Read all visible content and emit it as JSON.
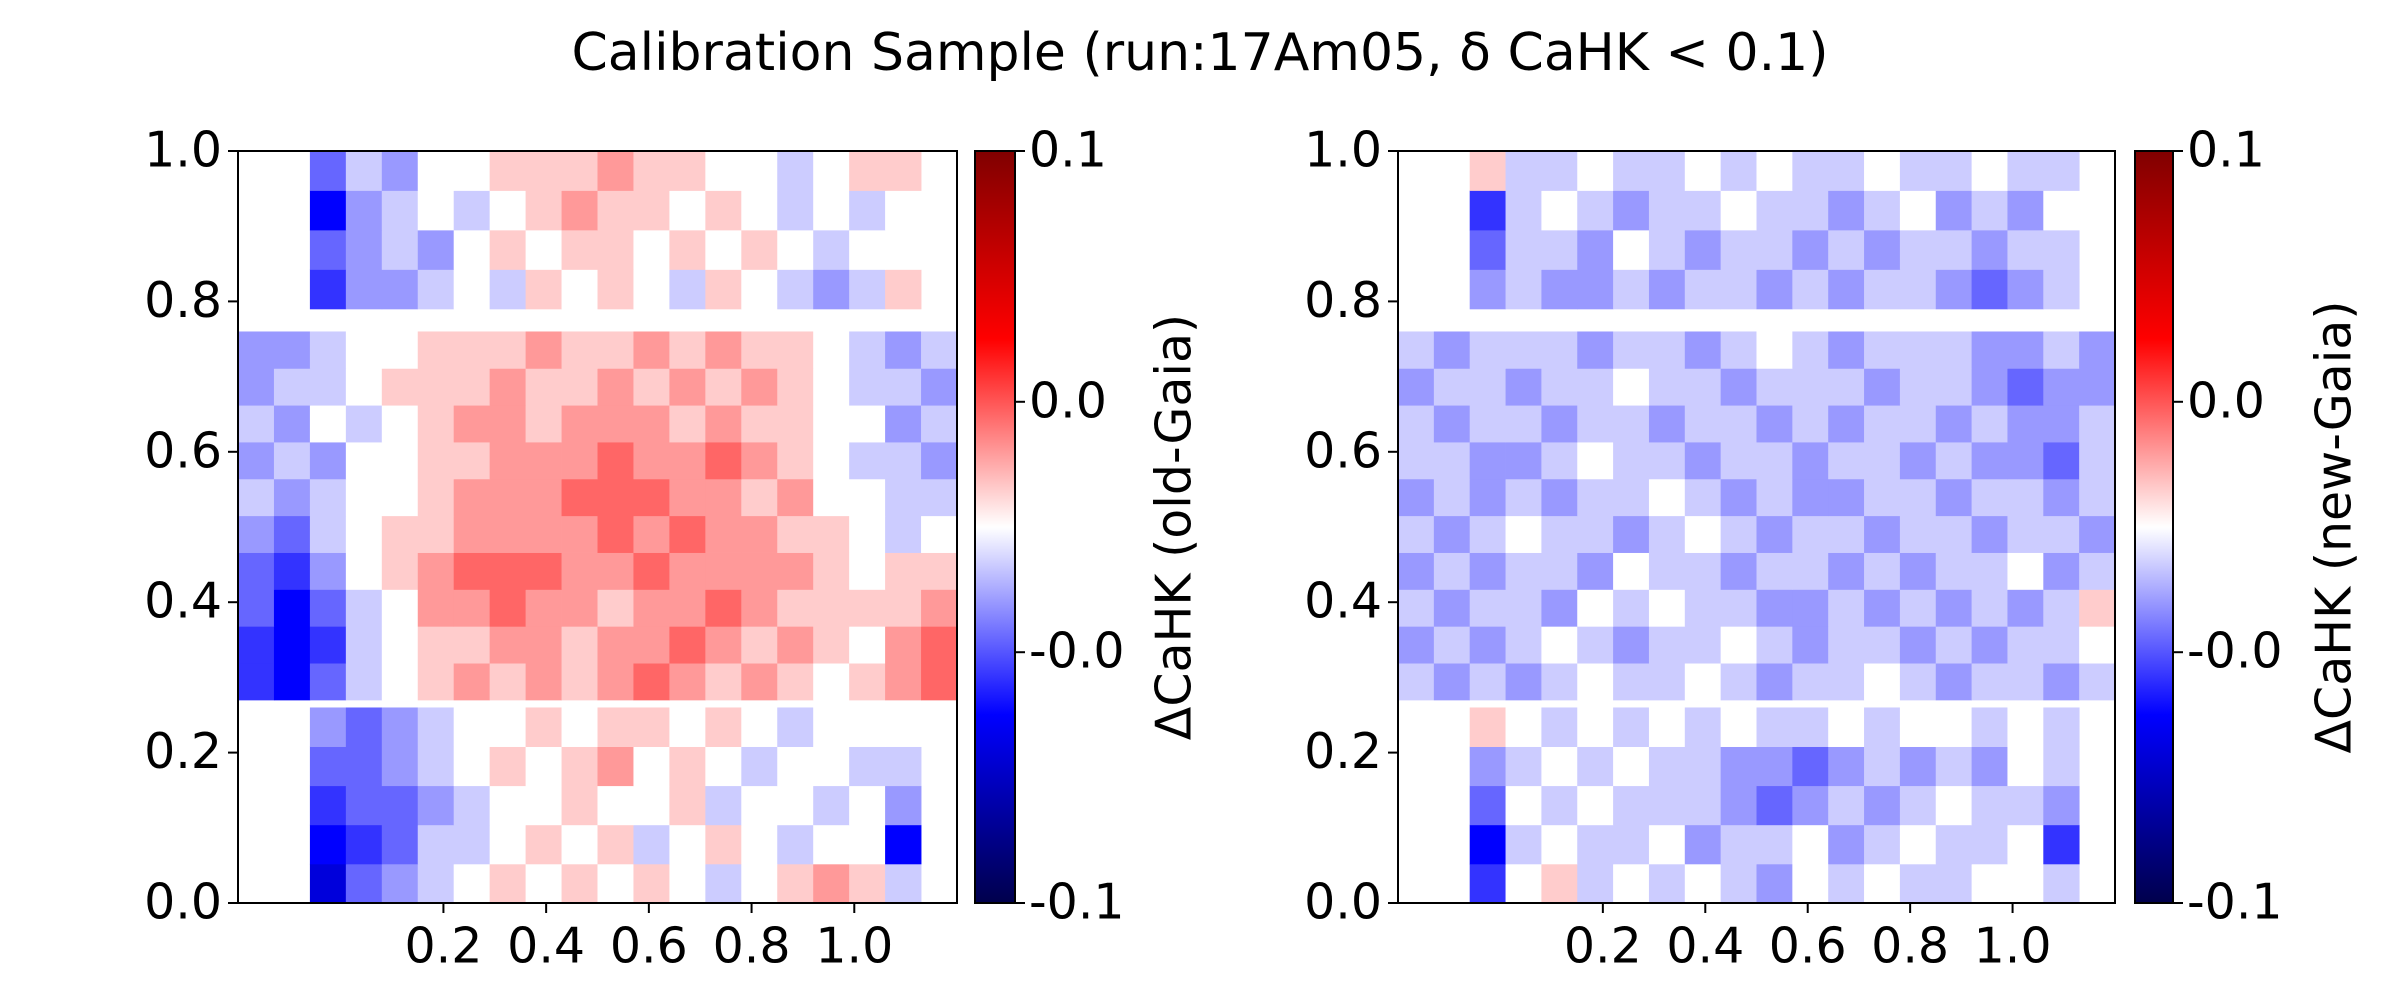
{
  "title": "Calibration Sample (run:17Am05, δ CaHK < 0.1)",
  "chart_data": [
    {
      "type": "heatmap",
      "xlim": [
        -0.2,
        1.2
      ],
      "ylim": [
        0,
        1
      ],
      "xticks": [
        0.2,
        0.4,
        0.6,
        0.8,
        {
          "value": 1.0,
          "label": "1.0"
        }
      ],
      "yticks": [
        {
          "value": 0,
          "label": "0.0"
        },
        0.2,
        0.4,
        0.6,
        0.8,
        {
          "value": 1.0,
          "label": "1.0"
        }
      ],
      "xbins": [
        -0.2,
        -0.13,
        -0.06,
        0.01,
        0.08,
        0.15,
        0.22,
        0.29,
        0.36,
        0.43,
        0.5,
        0.57,
        0.64,
        0.71,
        0.78,
        0.85,
        0.92,
        0.99,
        1.06,
        1.13,
        1.2
      ],
      "ybins": [
        0,
        0.052,
        0.104,
        0.156,
        0.208,
        0.26,
        0.27,
        0.319,
        0.368,
        0.417,
        0.466,
        0.515,
        0.564,
        0.613,
        0.662,
        0.711,
        0.76,
        0.79,
        0.8425,
        0.895,
        0.9475,
        1.0
      ],
      "z": [
        [
          null,
          null,
          -0.06,
          -0.03,
          -0.02,
          -0.01,
          0.0,
          0.01,
          0.0,
          0.01,
          0.0,
          0.01,
          0.0,
          -0.01,
          0.0,
          0.01,
          0.02,
          0.01,
          -0.01,
          null
        ],
        [
          null,
          null,
          -0.05,
          -0.04,
          -0.03,
          -0.01,
          -0.01,
          0.0,
          0.01,
          0.0,
          0.01,
          -0.01,
          0.0,
          0.01,
          0.0,
          -0.01,
          0.0,
          0.0,
          -0.05,
          null
        ],
        [
          null,
          null,
          -0.04,
          -0.03,
          -0.03,
          -0.02,
          -0.01,
          0.0,
          0.0,
          0.01,
          0.0,
          0.0,
          0.01,
          -0.01,
          0.0,
          0.0,
          -0.01,
          0.0,
          -0.02,
          null
        ],
        [
          null,
          null,
          -0.03,
          -0.03,
          -0.02,
          -0.01,
          0.0,
          0.01,
          0.0,
          0.01,
          0.02,
          0.0,
          0.01,
          0.0,
          -0.01,
          0.0,
          0.0,
          -0.01,
          -0.01,
          null
        ],
        [
          null,
          null,
          -0.02,
          -0.03,
          -0.02,
          -0.01,
          0.0,
          0.0,
          0.01,
          0.0,
          0.01,
          0.01,
          0.0,
          0.01,
          0.0,
          -0.01,
          0.0,
          0.0,
          0.0,
          null
        ],
        [
          null,
          null,
          null,
          null,
          null,
          null,
          null,
          null,
          null,
          null,
          null,
          null,
          null,
          null,
          null,
          null,
          null,
          null,
          null,
          null
        ],
        [
          -0.04,
          -0.05,
          -0.03,
          -0.01,
          0.0,
          0.01,
          0.02,
          0.01,
          0.02,
          0.01,
          0.02,
          0.03,
          0.02,
          0.01,
          0.02,
          0.01,
          0.0,
          0.01,
          0.02,
          0.03
        ],
        [
          -0.04,
          -0.05,
          -0.04,
          -0.01,
          0.0,
          0.01,
          0.01,
          0.02,
          0.02,
          0.01,
          0.02,
          0.02,
          0.03,
          0.02,
          0.01,
          0.02,
          0.01,
          0.0,
          0.02,
          0.03
        ],
        [
          -0.03,
          -0.05,
          -0.03,
          -0.01,
          0.0,
          0.02,
          0.02,
          0.03,
          0.02,
          0.02,
          0.01,
          0.02,
          0.02,
          0.03,
          0.02,
          0.01,
          0.01,
          0.01,
          0.01,
          0.02
        ],
        [
          -0.03,
          -0.04,
          -0.02,
          0.0,
          0.01,
          0.02,
          0.03,
          0.03,
          0.03,
          0.02,
          0.02,
          0.03,
          0.02,
          0.02,
          0.02,
          0.02,
          0.01,
          0.0,
          0.01,
          0.01
        ],
        [
          -0.02,
          -0.03,
          -0.01,
          0.0,
          0.01,
          0.01,
          0.02,
          0.02,
          0.02,
          0.02,
          0.03,
          0.02,
          0.03,
          0.02,
          0.02,
          0.01,
          0.01,
          0.0,
          -0.01,
          0.0
        ],
        [
          -0.01,
          -0.02,
          -0.01,
          0.0,
          0.0,
          0.01,
          0.02,
          0.02,
          0.02,
          0.03,
          0.03,
          0.03,
          0.02,
          0.02,
          0.01,
          0.02,
          0.0,
          0.0,
          -0.01,
          -0.01
        ],
        [
          -0.02,
          -0.01,
          -0.02,
          0.0,
          0.0,
          0.01,
          0.01,
          0.02,
          0.02,
          0.02,
          0.03,
          0.02,
          0.02,
          0.03,
          0.02,
          0.01,
          0.0,
          -0.01,
          -0.01,
          -0.02
        ],
        [
          -0.01,
          -0.02,
          0.0,
          -0.01,
          0.0,
          0.01,
          0.02,
          0.02,
          0.01,
          0.02,
          0.02,
          0.02,
          0.01,
          0.02,
          0.01,
          0.01,
          0.0,
          0.0,
          -0.02,
          -0.01
        ],
        [
          -0.02,
          -0.01,
          -0.01,
          0.0,
          0.01,
          0.01,
          0.01,
          0.02,
          0.01,
          0.01,
          0.02,
          0.01,
          0.02,
          0.01,
          0.02,
          0.01,
          0.0,
          -0.01,
          -0.01,
          -0.02
        ],
        [
          -0.02,
          -0.02,
          -0.01,
          0.0,
          0.0,
          0.01,
          0.01,
          0.01,
          0.02,
          0.01,
          0.01,
          0.02,
          0.01,
          0.02,
          0.01,
          0.01,
          0.0,
          -0.01,
          -0.02,
          -0.01
        ],
        [
          null,
          null,
          null,
          null,
          null,
          null,
          null,
          null,
          null,
          null,
          null,
          null,
          null,
          null,
          null,
          null,
          null,
          null,
          null,
          null
        ],
        [
          null,
          null,
          -0.04,
          -0.02,
          -0.02,
          -0.01,
          0.0,
          -0.01,
          0.01,
          0.0,
          0.01,
          0.0,
          -0.01,
          0.01,
          0.0,
          -0.01,
          -0.02,
          -0.01,
          0.01,
          null
        ],
        [
          null,
          null,
          -0.03,
          -0.02,
          -0.01,
          -0.02,
          0.0,
          0.01,
          0.0,
          0.01,
          0.01,
          0.0,
          0.01,
          0.0,
          0.01,
          0.0,
          -0.01,
          0.0,
          0.0,
          null
        ],
        [
          null,
          null,
          -0.05,
          -0.02,
          -0.01,
          0.0,
          -0.01,
          0.0,
          0.01,
          0.02,
          0.01,
          0.01,
          0.0,
          0.01,
          0.0,
          -0.01,
          0.0,
          -0.01,
          0.0,
          null
        ],
        [
          null,
          null,
          -0.03,
          -0.01,
          -0.02,
          0.0,
          0.0,
          0.01,
          0.01,
          0.01,
          0.02,
          0.01,
          0.01,
          0.0,
          0.0,
          -0.01,
          0.0,
          0.01,
          0.01,
          null
        ]
      ],
      "colormap": "seismic",
      "colorbar": {
        "label": "ΔCaHK (old-Gaia)",
        "lim": [
          -0.1,
          0.1
        ],
        "ticks": [
          {
            "value": -0.1,
            "label": "-0.1"
          },
          {
            "value": -0.0333,
            "label": "-0.0"
          },
          {
            "value": 0.0333,
            "label": "0.0"
          },
          0.1
        ]
      }
    },
    {
      "type": "heatmap",
      "xlim": [
        -0.2,
        1.2
      ],
      "ylim": [
        0,
        1
      ],
      "xticks": [
        0.2,
        0.4,
        0.6,
        0.8,
        {
          "value": 1.0,
          "label": "1.0"
        }
      ],
      "yticks": [
        {
          "value": 0,
          "label": "0.0"
        },
        0.2,
        0.4,
        0.6,
        0.8,
        {
          "value": 1.0,
          "label": "1.0"
        }
      ],
      "xbins": [
        -0.2,
        -0.13,
        -0.06,
        0.01,
        0.08,
        0.15,
        0.22,
        0.29,
        0.36,
        0.43,
        0.5,
        0.57,
        0.64,
        0.71,
        0.78,
        0.85,
        0.92,
        0.99,
        1.06,
        1.13,
        1.2
      ],
      "ybins": [
        0,
        0.052,
        0.104,
        0.156,
        0.208,
        0.26,
        0.27,
        0.319,
        0.368,
        0.417,
        0.466,
        0.515,
        0.564,
        0.613,
        0.662,
        0.711,
        0.76,
        0.79,
        0.8425,
        0.895,
        0.9475,
        1.0
      ],
      "z": [
        [
          null,
          null,
          -0.04,
          0.0,
          0.01,
          -0.01,
          0.0,
          -0.01,
          0.0,
          -0.01,
          -0.02,
          0.0,
          -0.01,
          0.0,
          -0.01,
          -0.01,
          0.0,
          0.0,
          -0.01,
          null
        ],
        [
          null,
          null,
          -0.05,
          -0.01,
          0.0,
          -0.01,
          -0.01,
          0.0,
          -0.02,
          -0.01,
          -0.01,
          0.0,
          -0.02,
          -0.01,
          0.0,
          -0.01,
          -0.01,
          0.0,
          -0.04,
          null
        ],
        [
          null,
          null,
          -0.03,
          0.0,
          -0.01,
          0.0,
          -0.01,
          -0.01,
          -0.01,
          -0.02,
          -0.03,
          -0.02,
          -0.01,
          -0.02,
          -0.01,
          0.0,
          -0.01,
          -0.01,
          -0.02,
          null
        ],
        [
          null,
          null,
          -0.02,
          -0.01,
          0.0,
          -0.01,
          0.0,
          -0.01,
          -0.01,
          -0.02,
          -0.02,
          -0.03,
          -0.02,
          -0.01,
          -0.02,
          -0.01,
          -0.02,
          0.0,
          -0.01,
          null
        ],
        [
          null,
          null,
          0.01,
          0.0,
          -0.01,
          0.0,
          -0.01,
          0.0,
          -0.01,
          0.0,
          -0.01,
          -0.01,
          0.0,
          -0.01,
          0.0,
          0.0,
          -0.01,
          0.0,
          -0.01,
          null
        ],
        [
          null,
          null,
          null,
          null,
          null,
          null,
          null,
          null,
          null,
          null,
          null,
          null,
          null,
          null,
          null,
          null,
          null,
          null,
          null,
          null
        ],
        [
          -0.01,
          -0.02,
          -0.01,
          -0.02,
          -0.01,
          0.0,
          -0.01,
          -0.01,
          0.0,
          -0.01,
          -0.02,
          -0.01,
          -0.01,
          0.0,
          -0.01,
          -0.02,
          -0.01,
          -0.01,
          -0.02,
          -0.01
        ],
        [
          -0.02,
          -0.01,
          -0.02,
          -0.01,
          0.0,
          -0.01,
          -0.02,
          -0.01,
          -0.01,
          0.0,
          -0.01,
          -0.02,
          -0.01,
          -0.01,
          -0.02,
          -0.01,
          -0.02,
          -0.01,
          -0.01,
          0.0
        ],
        [
          -0.01,
          -0.02,
          -0.01,
          -0.01,
          -0.02,
          0.0,
          -0.01,
          0.0,
          -0.01,
          -0.01,
          -0.02,
          -0.02,
          -0.01,
          -0.02,
          -0.01,
          -0.02,
          -0.01,
          -0.02,
          -0.01,
          0.01
        ],
        [
          -0.02,
          -0.01,
          -0.02,
          -0.01,
          -0.01,
          -0.02,
          0.0,
          -0.01,
          -0.01,
          -0.02,
          -0.01,
          -0.01,
          -0.02,
          -0.01,
          -0.02,
          -0.01,
          -0.01,
          0.0,
          -0.02,
          -0.01
        ],
        [
          -0.01,
          -0.02,
          -0.01,
          0.0,
          -0.01,
          -0.01,
          -0.02,
          -0.01,
          0.0,
          -0.01,
          -0.02,
          -0.01,
          -0.01,
          -0.02,
          -0.01,
          -0.01,
          -0.02,
          -0.01,
          -0.01,
          -0.02
        ],
        [
          -0.02,
          -0.01,
          -0.02,
          -0.01,
          -0.02,
          -0.01,
          -0.01,
          0.0,
          -0.01,
          -0.02,
          -0.01,
          -0.02,
          -0.02,
          -0.01,
          -0.01,
          -0.02,
          -0.01,
          -0.01,
          -0.02,
          -0.01
        ],
        [
          -0.01,
          -0.01,
          -0.02,
          -0.02,
          -0.01,
          0.0,
          -0.01,
          -0.01,
          -0.02,
          -0.01,
          -0.01,
          -0.02,
          -0.01,
          -0.01,
          -0.02,
          -0.01,
          -0.02,
          -0.02,
          -0.03,
          -0.01
        ],
        [
          -0.01,
          -0.02,
          -0.01,
          -0.01,
          -0.02,
          -0.01,
          -0.01,
          -0.02,
          -0.01,
          -0.01,
          -0.02,
          -0.01,
          -0.02,
          -0.01,
          -0.01,
          -0.02,
          -0.01,
          -0.02,
          -0.02,
          -0.01
        ],
        [
          -0.02,
          -0.01,
          -0.01,
          -0.02,
          -0.01,
          -0.01,
          0.0,
          -0.01,
          -0.01,
          -0.02,
          -0.01,
          -0.01,
          -0.01,
          -0.02,
          -0.01,
          -0.01,
          -0.02,
          -0.03,
          -0.02,
          -0.02
        ],
        [
          -0.01,
          -0.02,
          -0.01,
          -0.01,
          -0.01,
          -0.02,
          -0.01,
          -0.01,
          -0.02,
          -0.01,
          0.0,
          -0.01,
          -0.02,
          -0.01,
          -0.01,
          -0.01,
          -0.02,
          -0.02,
          -0.01,
          -0.02
        ],
        [
          null,
          null,
          null,
          null,
          null,
          null,
          null,
          null,
          null,
          null,
          null,
          null,
          null,
          null,
          null,
          null,
          null,
          null,
          null,
          null
        ],
        [
          null,
          null,
          -0.02,
          -0.01,
          -0.02,
          -0.02,
          -0.01,
          -0.02,
          -0.01,
          -0.01,
          -0.02,
          -0.01,
          -0.02,
          -0.01,
          -0.01,
          -0.02,
          -0.03,
          -0.02,
          -0.01,
          null
        ],
        [
          null,
          null,
          -0.03,
          -0.01,
          -0.01,
          -0.02,
          0.0,
          -0.01,
          -0.02,
          -0.01,
          -0.01,
          -0.02,
          -0.01,
          -0.02,
          -0.01,
          -0.01,
          -0.02,
          -0.01,
          -0.01,
          null
        ],
        [
          null,
          null,
          -0.04,
          -0.01,
          0.0,
          -0.01,
          -0.02,
          -0.01,
          -0.01,
          0.0,
          -0.01,
          -0.01,
          -0.02,
          -0.01,
          0.0,
          -0.02,
          -0.01,
          -0.02,
          0.0,
          null
        ],
        [
          null,
          null,
          0.01,
          -0.01,
          -0.01,
          0.0,
          -0.01,
          -0.01,
          0.0,
          -0.01,
          0.0,
          -0.01,
          -0.01,
          0.0,
          -0.01,
          -0.01,
          0.0,
          -0.01,
          -0.01,
          null
        ]
      ],
      "colormap": "seismic",
      "colorbar": {
        "label": "ΔCaHK (new-Gaia)",
        "lim": [
          -0.1,
          0.1
        ],
        "ticks": [
          {
            "value": -0.1,
            "label": "-0.1"
          },
          {
            "value": -0.0333,
            "label": "-0.0"
          },
          {
            "value": 0.0333,
            "label": "0.0"
          },
          0.1
        ]
      }
    }
  ]
}
